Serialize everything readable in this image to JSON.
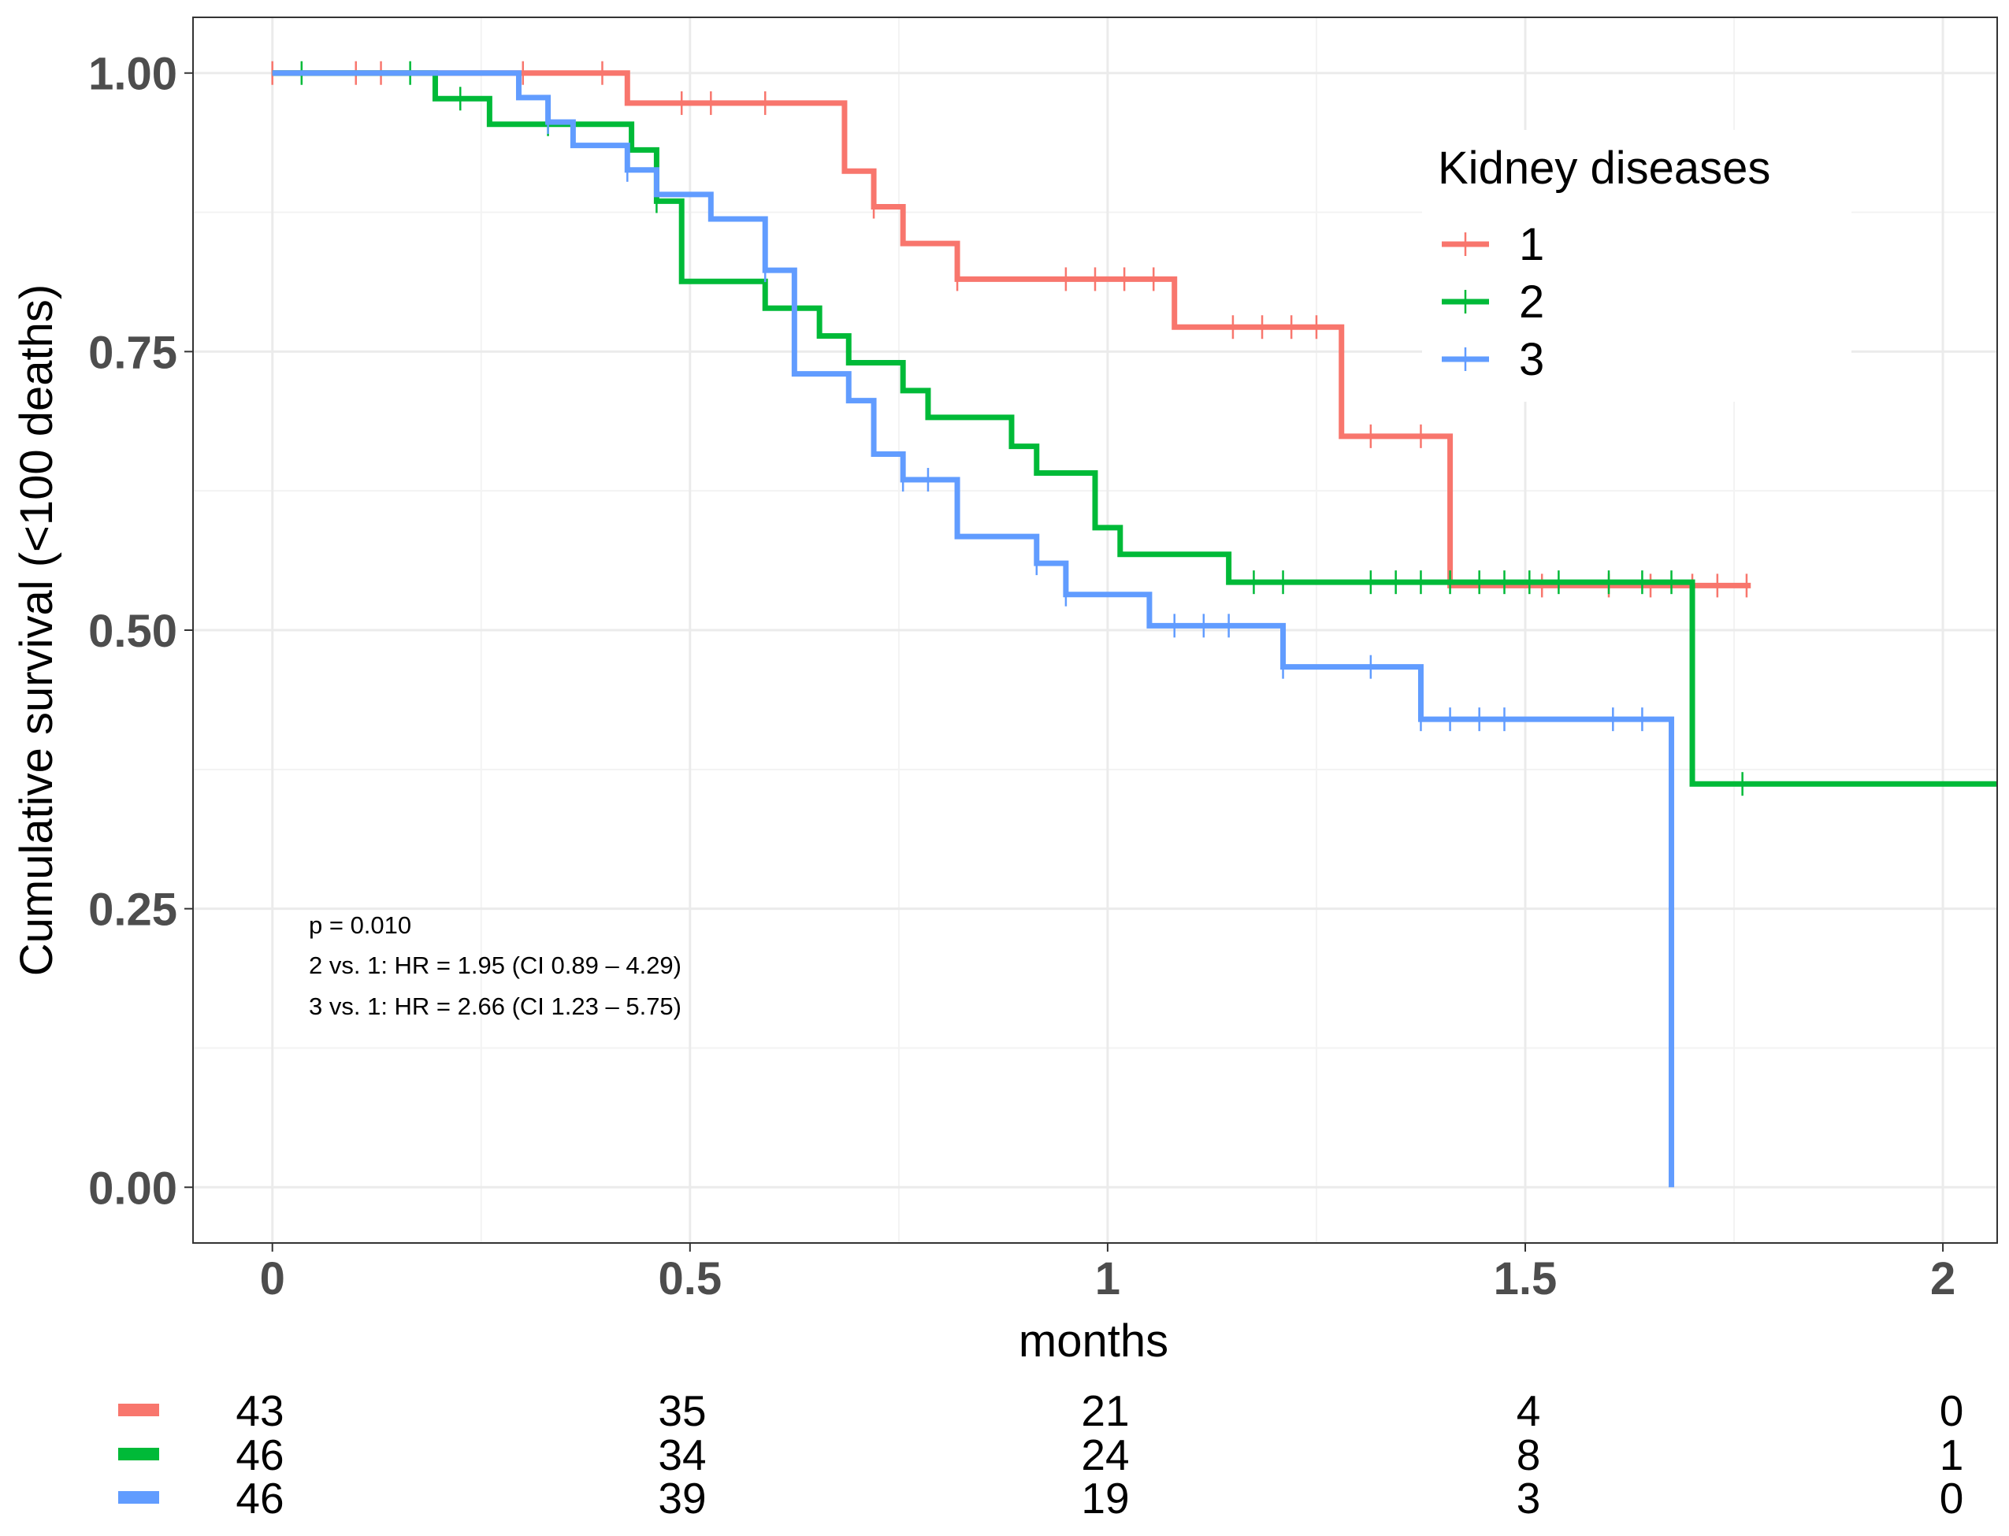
{
  "chart_data": {
    "type": "line",
    "step": true,
    "xlabel": "months",
    "ylabel": "Cumulative survival (<100 deaths)",
    "xlim": [
      -0.095,
      2.065
    ],
    "ylim": [
      -0.05,
      1.05
    ],
    "x_ticks": [
      0,
      0.5,
      1,
      1.5,
      2
    ],
    "x_tick_labels": [
      "0",
      "0.5",
      "1",
      "1.5",
      "2"
    ],
    "y_ticks": [
      0,
      0.25,
      0.5,
      0.75,
      1
    ],
    "y_tick_labels": [
      "0.00",
      "0.25",
      "0.50",
      "0.75",
      "1.00"
    ],
    "grid": true,
    "legend": {
      "title": "Kidney diseases",
      "position": "top-right",
      "entries": [
        "1",
        "2",
        "3"
      ]
    },
    "annotations": [
      "p = 0.010",
      "2 vs. 1: HR = 1.95 (CI 0.89 – 4.29)",
      "3 vs. 1: HR = 2.66 (CI 1.23 – 5.75)"
    ],
    "series": [
      {
        "name": "1",
        "color": "#F8766D",
        "steps": [
          [
            0,
            1.0
          ],
          [
            0.425,
            0.973
          ],
          [
            0.685,
            0.912
          ],
          [
            0.72,
            0.88
          ],
          [
            0.755,
            0.847
          ],
          [
            0.82,
            0.815
          ],
          [
            1.08,
            0.772
          ],
          [
            1.28,
            0.674
          ],
          [
            1.41,
            0.54
          ],
          [
            1.77,
            0.54
          ]
        ],
        "censored": [
          [
            0.0,
            1.0
          ],
          [
            0.1,
            1.0
          ],
          [
            0.13,
            1.0
          ],
          [
            0.3,
            1.0
          ],
          [
            0.395,
            1.0
          ],
          [
            0.49,
            0.973
          ],
          [
            0.525,
            0.973
          ],
          [
            0.59,
            0.973
          ],
          [
            0.72,
            0.88
          ],
          [
            0.82,
            0.815
          ],
          [
            0.95,
            0.815
          ],
          [
            0.985,
            0.815
          ],
          [
            1.02,
            0.815
          ],
          [
            1.055,
            0.815
          ],
          [
            1.15,
            0.772
          ],
          [
            1.185,
            0.772
          ],
          [
            1.22,
            0.772
          ],
          [
            1.25,
            0.772
          ],
          [
            1.315,
            0.674
          ],
          [
            1.375,
            0.674
          ],
          [
            1.52,
            0.54
          ],
          [
            1.6,
            0.54
          ],
          [
            1.65,
            0.54
          ],
          [
            1.7,
            0.54
          ],
          [
            1.73,
            0.54
          ],
          [
            1.765,
            0.54
          ]
        ]
      },
      {
        "name": "2",
        "color": "#00BA38",
        "steps": [
          [
            0,
            1.0
          ],
          [
            0.195,
            0.977
          ],
          [
            0.26,
            0.954
          ],
          [
            0.43,
            0.931
          ],
          [
            0.46,
            0.885
          ],
          [
            0.49,
            0.813
          ],
          [
            0.59,
            0.789
          ],
          [
            0.655,
            0.764
          ],
          [
            0.69,
            0.74
          ],
          [
            0.755,
            0.715
          ],
          [
            0.785,
            0.691
          ],
          [
            0.885,
            0.665
          ],
          [
            0.915,
            0.641
          ],
          [
            0.985,
            0.592
          ],
          [
            1.015,
            0.568
          ],
          [
            1.145,
            0.543
          ],
          [
            1.7,
            0.362
          ],
          [
            2.065,
            0.362
          ]
        ],
        "censored": [
          [
            0.035,
            1.0
          ],
          [
            0.165,
            1.0
          ],
          [
            0.225,
            0.977
          ],
          [
            0.33,
            0.954
          ],
          [
            0.46,
            0.885
          ],
          [
            0.625,
            0.789
          ],
          [
            1.175,
            0.543
          ],
          [
            1.21,
            0.543
          ],
          [
            1.315,
            0.543
          ],
          [
            1.345,
            0.543
          ],
          [
            1.375,
            0.543
          ],
          [
            1.41,
            0.543
          ],
          [
            1.445,
            0.543
          ],
          [
            1.475,
            0.543
          ],
          [
            1.505,
            0.543
          ],
          [
            1.54,
            0.543
          ],
          [
            1.6,
            0.543
          ],
          [
            1.64,
            0.543
          ],
          [
            1.675,
            0.543
          ],
          [
            1.76,
            0.362
          ]
        ]
      },
      {
        "name": "3",
        "color": "#619CFF",
        "steps": [
          [
            0,
            1.0
          ],
          [
            0.295,
            0.978
          ],
          [
            0.33,
            0.956
          ],
          [
            0.36,
            0.935
          ],
          [
            0.425,
            0.913
          ],
          [
            0.46,
            0.891
          ],
          [
            0.525,
            0.869
          ],
          [
            0.59,
            0.823
          ],
          [
            0.625,
            0.73
          ],
          [
            0.69,
            0.706
          ],
          [
            0.72,
            0.658
          ],
          [
            0.755,
            0.635
          ],
          [
            0.82,
            0.584
          ],
          [
            0.915,
            0.56
          ],
          [
            0.95,
            0.532
          ],
          [
            1.05,
            0.504
          ],
          [
            1.21,
            0.467
          ],
          [
            1.375,
            0.42
          ],
          [
            1.675,
            0.0
          ]
        ],
        "censored": [
          [
            0.33,
            0.956
          ],
          [
            0.425,
            0.913
          ],
          [
            0.59,
            0.823
          ],
          [
            0.755,
            0.635
          ],
          [
            0.785,
            0.635
          ],
          [
            0.915,
            0.56
          ],
          [
            0.95,
            0.532
          ],
          [
            1.08,
            0.504
          ],
          [
            1.115,
            0.504
          ],
          [
            1.145,
            0.504
          ],
          [
            1.21,
            0.467
          ],
          [
            1.315,
            0.467
          ],
          [
            1.375,
            0.42
          ],
          [
            1.41,
            0.42
          ],
          [
            1.445,
            0.42
          ],
          [
            1.475,
            0.42
          ],
          [
            1.605,
            0.42
          ],
          [
            1.64,
            0.42
          ]
        ]
      }
    ],
    "risk_table": {
      "times": [
        0,
        0.5,
        1,
        1.5,
        2
      ],
      "rows": [
        {
          "name": "1",
          "color": "#F8766D",
          "counts": [
            "43",
            "35",
            "21",
            "4",
            "0"
          ]
        },
        {
          "name": "2",
          "color": "#00BA38",
          "counts": [
            "46",
            "34",
            "24",
            "8",
            "1"
          ]
        },
        {
          "name": "3",
          "color": "#619CFF",
          "counts": [
            "46",
            "39",
            "19",
            "3",
            "0"
          ]
        }
      ]
    }
  }
}
